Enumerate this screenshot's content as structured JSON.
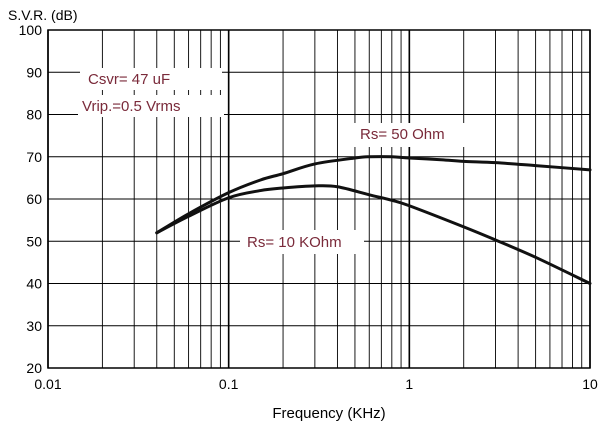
{
  "chart_data": {
    "type": "line",
    "title": "",
    "ylabel": "S.V.R. (dB)",
    "xlabel": "Frequency (KHz)",
    "x_scale": "log",
    "xlim": [
      0.01,
      10
    ],
    "ylim": [
      20,
      100
    ],
    "grid": true,
    "x_tick_values": [
      0.01,
      0.1,
      1,
      10
    ],
    "x_tick_labels": [
      "0.01",
      "0.1",
      "1",
      "10"
    ],
    "y_ticks": [
      20,
      30,
      40,
      50,
      60,
      70,
      80,
      90,
      100
    ],
    "series": [
      {
        "name": "Rs= 50 Ohm",
        "x": [
          0.04,
          0.06,
          0.1,
          0.15,
          0.2,
          0.3,
          0.5,
          0.6,
          0.8,
          1,
          1.5,
          2,
          3,
          5,
          10
        ],
        "y": [
          52,
          56.5,
          61.5,
          64.5,
          66,
          68.3,
          69.7,
          70,
          70,
          69.7,
          69.3,
          68.9,
          68.6,
          67.9,
          66.9
        ]
      },
      {
        "name": "Rs= 10 KOhm",
        "x": [
          0.04,
          0.06,
          0.1,
          0.15,
          0.2,
          0.3,
          0.4,
          0.6,
          0.8,
          1,
          2,
          3,
          5,
          10
        ],
        "y": [
          52,
          55.9,
          60.3,
          62,
          62.6,
          63.1,
          62.9,
          61,
          59.7,
          58.4,
          53.4,
          50.3,
          46.2,
          40
        ]
      }
    ],
    "annotations": [
      {
        "id": "csvr",
        "text": "Csvr= 47 uF"
      },
      {
        "id": "vrip",
        "text": "Vrip.=0.5 Vrms"
      },
      {
        "id": "rs50",
        "text": "Rs= 50 Ohm"
      },
      {
        "id": "rs10k",
        "text": "Rs= 10 KOhm"
      }
    ]
  },
  "colors": {
    "curve": "#111111",
    "grid": "#000000",
    "annotation_text": "#7a2a3a",
    "axis_text": "#000000"
  }
}
